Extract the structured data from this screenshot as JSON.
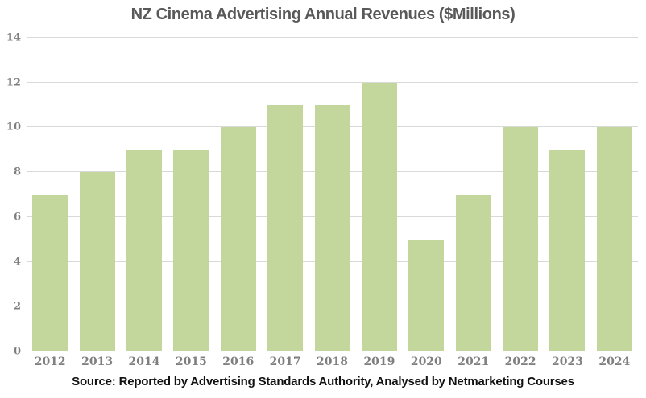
{
  "title": "NZ Cinema Advertising Annual Revenues ($Millions)",
  "source_note": "Source: Reported by Advertising Standards Authority, Analysed by Netmarketing Courses",
  "colors": {
    "bar": "#c3d69b",
    "gridline": "#d9d9d9",
    "title_text": "#595959",
    "tick_label": "#7f7f7f",
    "source_text": "#111111",
    "background": "#ffffff"
  },
  "chart_data": {
    "type": "bar",
    "title": "NZ Cinema Advertising Annual Revenues ($Millions)",
    "categories": [
      "2012",
      "2013",
      "2014",
      "2015",
      "2016",
      "2017",
      "2018",
      "2019",
      "2020",
      "2021",
      "2022",
      "2023",
      "2024"
    ],
    "values": [
      7,
      8,
      9,
      9,
      10,
      11,
      11,
      12,
      5,
      7,
      10,
      9,
      10
    ],
    "xlabel": "",
    "ylabel": "",
    "ylim": [
      0,
      14
    ],
    "y_ticks": [
      0,
      2,
      4,
      6,
      8,
      10,
      12,
      14
    ],
    "grid": true,
    "legend": false,
    "annotation": "Source: Reported by Advertising Standards Authority, Analysed by Netmarketing Courses"
  }
}
